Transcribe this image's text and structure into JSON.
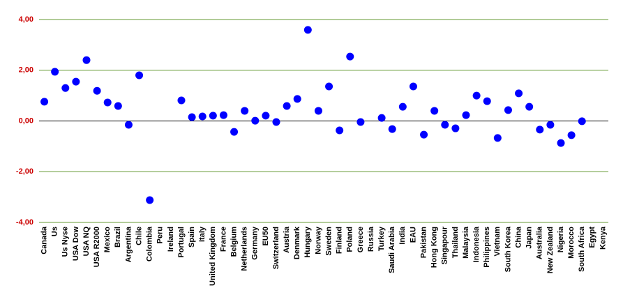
{
  "chart_data": {
    "type": "scatter",
    "categories": [
      "Canada",
      "Us",
      "Us Nyse",
      "USA Dow",
      "USA NQ",
      "USA R2000",
      "Mexico",
      "Brazil",
      "Argentina",
      "Chile",
      "Colombia",
      "Peru",
      "Ireland",
      "Portugal",
      "Spain",
      "Italy",
      "United Kingdom",
      "France",
      "Belgium",
      "Netherlands",
      "Germany",
      "EU50",
      "Switzerland",
      "Austria",
      "Denmark",
      "Hungary",
      "Norway",
      "Sweden",
      "Finland",
      "Poland",
      "Greece",
      "Russia",
      "Turkey",
      "Saudi Arabia",
      "India",
      "EAU",
      "Pakistan",
      "Hong Kong",
      "Singapour",
      "Thailand",
      "Malaysia",
      "Indonesia",
      "Philippines",
      "Vietnam",
      "South Korea",
      "China",
      "Japan",
      "Australia",
      "New Zealand",
      "Nigeria",
      "Morocco",
      "South Africa",
      "Egypt",
      "Kenya"
    ],
    "values": [
      0.76,
      1.94,
      1.3,
      1.55,
      2.4,
      1.19,
      0.73,
      0.59,
      -0.15,
      1.8,
      -3.12,
      null,
      null,
      0.81,
      0.15,
      0.18,
      0.21,
      0.23,
      -0.43,
      0.4,
      0.01,
      0.21,
      -0.04,
      0.59,
      0.87,
      3.59,
      0.4,
      1.36,
      -0.37,
      2.54,
      -0.04,
      null,
      0.12,
      -0.32,
      0.56,
      1.36,
      -0.54,
      0.4,
      -0.15,
      -0.29,
      0.23,
      1.0,
      0.78,
      -0.67,
      0.43,
      1.09,
      0.56,
      -0.34,
      -0.15,
      -0.87,
      -0.56,
      -0.01,
      null,
      null
    ],
    "color": "#0000ff",
    "ylim": [
      -4,
      4
    ],
    "yticks": [
      {
        "value": -4,
        "label": "-4,00"
      },
      {
        "value": -2,
        "label": "-2,00"
      },
      {
        "value": 0,
        "label": "0,00"
      },
      {
        "value": 2,
        "label": "2,00"
      },
      {
        "value": 4,
        "label": "4,00"
      }
    ],
    "grid": true,
    "grid_color": "#669933",
    "tick_label_color": "#cc0000"
  }
}
